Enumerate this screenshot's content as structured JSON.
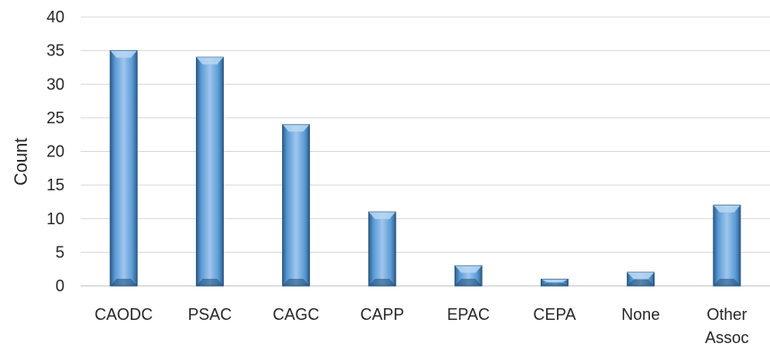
{
  "chart_data": {
    "type": "bar",
    "categories": [
      "CAODC",
      "PSAC",
      "CAGC",
      "CAPP",
      "EPAC",
      "CEPA",
      "None",
      "Other Assoc"
    ],
    "category_lines": [
      [
        "CAODC"
      ],
      [
        "PSAC"
      ],
      [
        "CAGC"
      ],
      [
        "CAPP"
      ],
      [
        "EPAC"
      ],
      [
        "CEPA"
      ],
      [
        "None"
      ],
      [
        "Other",
        "Assoc"
      ]
    ],
    "values": [
      35,
      34,
      24,
      11,
      3,
      1,
      2,
      12
    ],
    "ylabel": "Count",
    "xlabel": "",
    "ylim": [
      0,
      40
    ],
    "yticks": [
      0,
      5,
      10,
      15,
      20,
      25,
      30,
      35,
      40
    ],
    "grid": true,
    "legend": "none",
    "bar_color": "#5b9bd5",
    "bar_dark": "#1f4e79",
    "grid_color": "#d9d9d9"
  }
}
